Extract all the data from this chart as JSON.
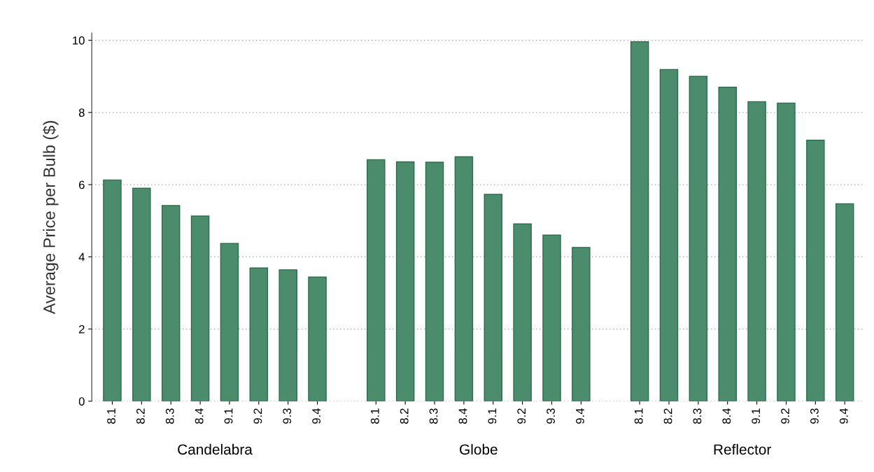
{
  "chart_data": {
    "type": "bar",
    "ylabel": "Average Price per Bulb ($)",
    "categories": [
      "8.1",
      "8.2",
      "8.3",
      "8.4",
      "9.1",
      "9.2",
      "9.3",
      "9.4",
      null,
      "8.1",
      "8.2",
      "8.3",
      "8.4",
      "9.1",
      "9.2",
      "9.3",
      "9.4",
      null,
      "8.1",
      "8.2",
      "8.3",
      "8.4",
      "9.1",
      "9.2",
      "9.3",
      "9.4"
    ],
    "values": [
      6.13,
      5.9,
      5.42,
      5.13,
      4.37,
      3.69,
      3.64,
      3.44,
      null,
      6.69,
      6.63,
      6.62,
      6.77,
      5.73,
      4.91,
      4.6,
      4.26,
      null,
      9.96,
      9.19,
      9.0,
      8.7,
      8.3,
      8.26,
      7.23,
      5.47
    ],
    "color": "#4a8c6c",
    "annotations": [
      "Candelabra",
      "Globe",
      "Reflector"
    ],
    "ylim": [
      0,
      10.2
    ],
    "yticks": [
      0,
      2,
      4,
      6,
      8,
      10
    ],
    "grid": "y"
  }
}
